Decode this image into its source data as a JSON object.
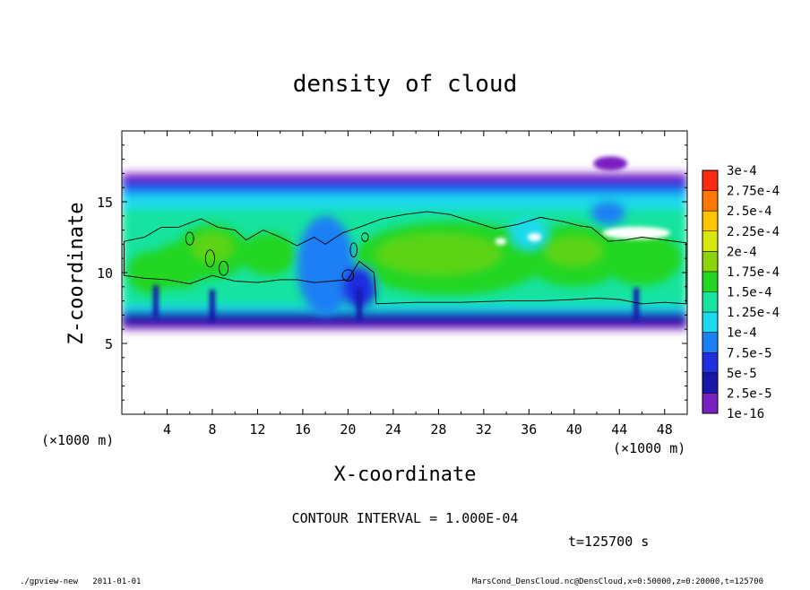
{
  "chart_data": {
    "type": "heatmap",
    "title": "density of cloud",
    "xlabel": "X-coordinate",
    "ylabel": "Z-coordinate",
    "x_unit": "(×1000 m)",
    "y_unit": "(×1000 m)",
    "xlim": [
      0,
      50
    ],
    "ylim": [
      0,
      20
    ],
    "x_ticks": [
      4,
      8,
      12,
      16,
      20,
      24,
      28,
      32,
      36,
      40,
      44,
      48
    ],
    "y_ticks": [
      5,
      10,
      15
    ],
    "colorbar": {
      "levels": [
        "1e-16",
        "2.5e-5",
        "5e-5",
        "7.5e-5",
        "1e-4",
        "1.25e-4",
        "1.5e-4",
        "1.75e-4",
        "2e-4",
        "2.25e-4",
        "2.5e-4",
        "2.75e-4",
        "3e-4"
      ],
      "colors": [
        "#7a1fc2",
        "#1818a8",
        "#1f2ee0",
        "#1d7ff5",
        "#1cd9ee",
        "#18e3a0",
        "#22d622",
        "#8ed40c",
        "#d8e80c",
        "#ffc400",
        "#ff7700",
        "#ff2a10",
        "#ff8f8f"
      ]
    },
    "cloud_layer": {
      "bottom_km": 6,
      "top_km": 17,
      "core_value": 0.00013,
      "core_x_range": [
        20,
        44
      ],
      "core_z_range": [
        8,
        14
      ]
    },
    "contour_interval": "CONTOUR INTERVAL = 1.000E-04",
    "time_label": "t=125700 s",
    "grid": false
  },
  "footer": {
    "left": "./gpview-new   2011-01-01",
    "right": "MarsCond_DensCloud.nc@DensCloud,x=0:50000,z=0:20000,t=125700"
  }
}
